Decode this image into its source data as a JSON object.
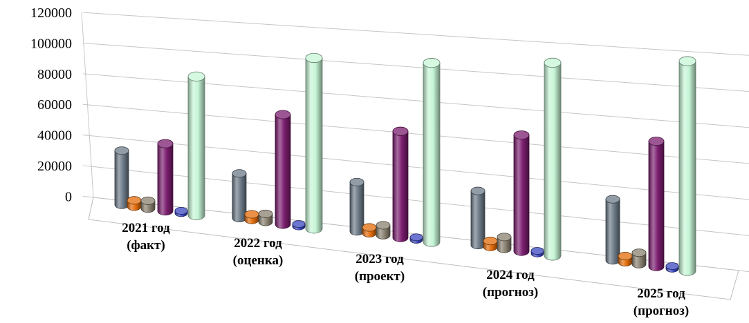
{
  "chart_data": {
    "type": "bar",
    "style": "3d-cylinder",
    "categories": [
      [
        "2021 год",
        "(факт)"
      ],
      [
        "2022 год",
        "(оценка)"
      ],
      [
        "2023 год",
        "(проект)"
      ],
      [
        "2024 год",
        "(прогноз)"
      ],
      [
        "2025 год",
        "(прогноз)"
      ]
    ],
    "series": [
      {
        "color": "#6d7b89",
        "values": [
          35000,
          28000,
          30000,
          32000,
          35000
        ]
      },
      {
        "color": "#e36c0a",
        "values": [
          4000,
          3500,
          3500,
          3500,
          3500
        ]
      },
      {
        "color": "#8a8170",
        "values": [
          5000,
          5000,
          6000,
          7000,
          6500
        ]
      },
      {
        "color": "#7b1d6f",
        "values": [
          43000,
          68000,
          64000,
          68000,
          71000
        ]
      },
      {
        "color": "#3b48c2",
        "values": [
          1500,
          1500,
          1500,
          1500,
          1500
        ]
      },
      {
        "color": "#c6f5d6",
        "values": [
          88000,
          105000,
          107000,
          112000,
          118000
        ]
      }
    ],
    "yticks": [
      "0",
      "20000",
      "40000",
      "60000",
      "80000",
      "100000",
      "120000"
    ],
    "ylim": [
      0,
      120000
    ],
    "grid": true,
    "legend": "none",
    "title": "",
    "xlabel": "",
    "ylabel": ""
  }
}
